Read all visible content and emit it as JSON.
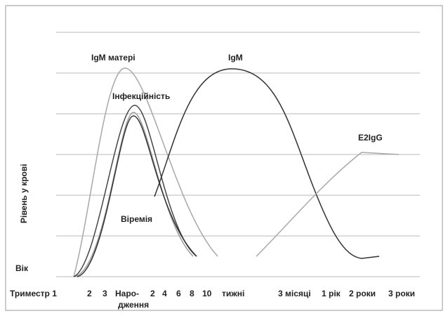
{
  "curve_labels": {
    "igm_mother": "IgM матері",
    "infectivity": "Інфекційність",
    "igm": "IgM",
    "e2igg": "E2IgG",
    "viremia": "Віремія"
  },
  "y_axis_title": "Рівень у крові",
  "origin_label": "Вік",
  "x_labels": [
    "Триместр 1",
    "2",
    "3",
    "Наро-",
    "2",
    "4",
    "6",
    "8",
    "10",
    "тижні",
    "3 місяці",
    "1 рік",
    "2 роки",
    "3 роки"
  ],
  "x_label_birth_line2": "дження"
}
